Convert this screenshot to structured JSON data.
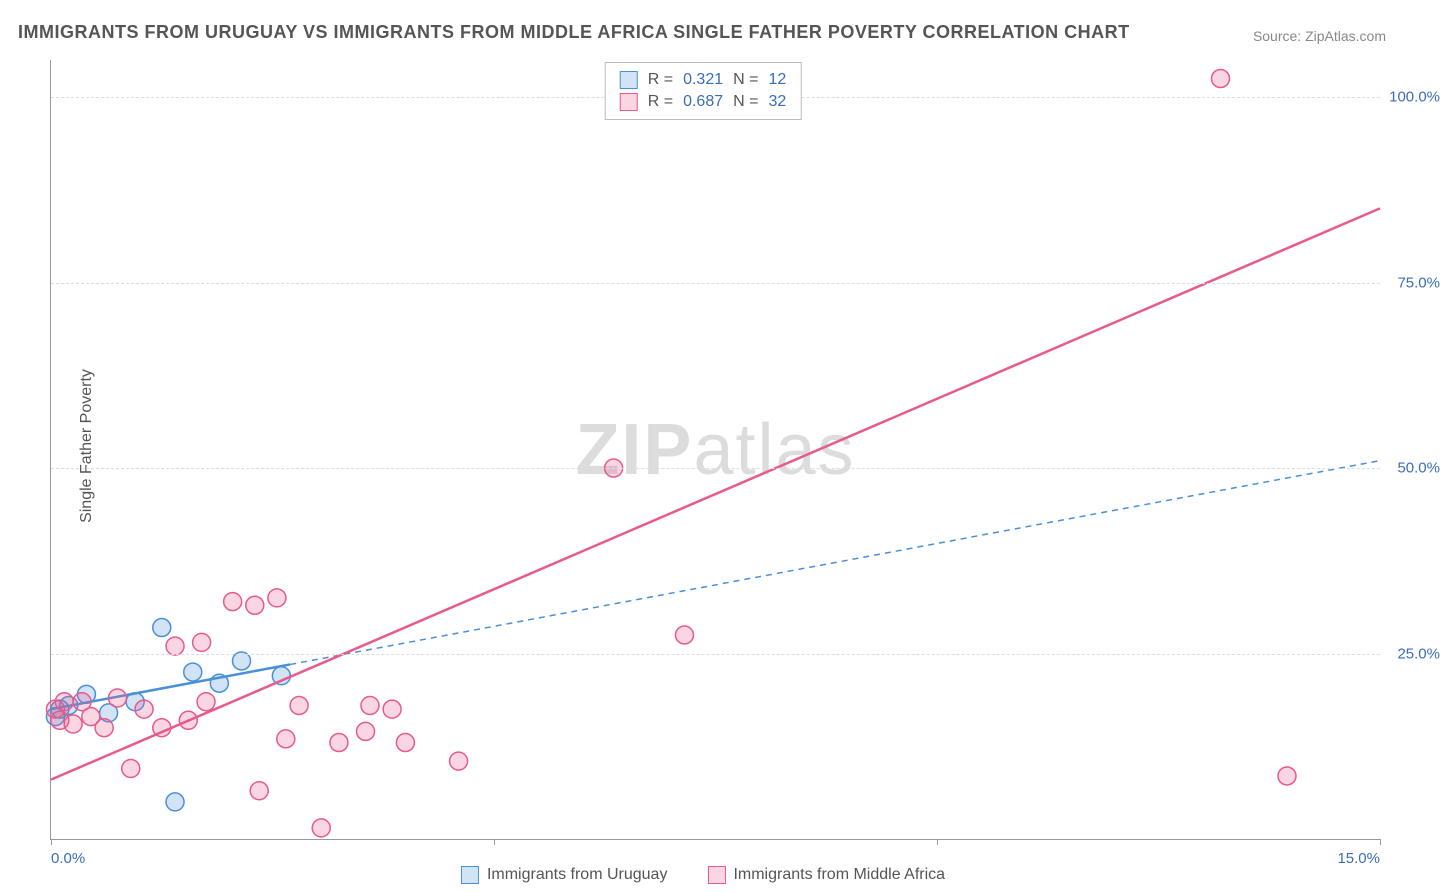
{
  "title": "IMMIGRANTS FROM URUGUAY VS IMMIGRANTS FROM MIDDLE AFRICA SINGLE FATHER POVERTY CORRELATION CHART",
  "source_label": "Source: ZipAtlas.com",
  "y_axis_label": "Single Father Poverty",
  "watermark": {
    "bold": "ZIP",
    "rest": "atlas"
  },
  "chart": {
    "type": "scatter",
    "background_color": "#ffffff",
    "grid_color": "#dddddd",
    "axis_color": "#999999",
    "tick_label_color": "#3b6db5",
    "tick_fontsize": 15,
    "title_fontsize": 18,
    "xlim": [
      0,
      15
    ],
    "ylim": [
      0,
      105
    ],
    "x_ticks": [
      0,
      5,
      10,
      15
    ],
    "x_tick_labels": [
      "0.0%",
      "",
      "",
      "15.0%"
    ],
    "y_ticks": [
      25,
      50,
      75,
      100
    ],
    "y_tick_labels": [
      "25.0%",
      "50.0%",
      "75.0%",
      "100.0%"
    ],
    "marker_radius": 9,
    "marker_stroke_width": 1.5,
    "marker_fill_opacity": 0.25,
    "line_width_solid": 2.5,
    "line_width_dashed": 1.5,
    "dash_pattern": "6,5"
  },
  "series": [
    {
      "key": "uruguay",
      "label": "Immigrants from Uruguay",
      "color_stroke": "#4a90d9",
      "color_fill": "#4a90d9",
      "R": "0.321",
      "N": "12",
      "points": [
        [
          0.05,
          16.5
        ],
        [
          0.1,
          17.5
        ],
        [
          0.2,
          18.0
        ],
        [
          0.4,
          19.5
        ],
        [
          0.65,
          17.0
        ],
        [
          0.95,
          18.5
        ],
        [
          1.25,
          28.5
        ],
        [
          1.6,
          22.5
        ],
        [
          1.9,
          21.0
        ],
        [
          2.15,
          24.0
        ],
        [
          2.6,
          22.0
        ],
        [
          1.4,
          5.0
        ]
      ],
      "trend": {
        "x1": 0,
        "y1": 17.5,
        "x2": 2.7,
        "y2": 24.0,
        "extend_x": 15,
        "extend_y": 51.0,
        "dashed_after_x": 2.7
      }
    },
    {
      "key": "middle_africa",
      "label": "Immigrants from Middle Africa",
      "color_stroke": "#e85a8a",
      "color_fill": "#e85a8a",
      "R": "0.687",
      "N": "32",
      "points": [
        [
          0.05,
          17.5
        ],
        [
          0.1,
          16.0
        ],
        [
          0.15,
          18.5
        ],
        [
          0.25,
          15.5
        ],
        [
          0.35,
          18.5
        ],
        [
          0.45,
          16.5
        ],
        [
          0.6,
          15.0
        ],
        [
          0.75,
          19.0
        ],
        [
          0.9,
          9.5
        ],
        [
          1.05,
          17.5
        ],
        [
          1.25,
          15.0
        ],
        [
          1.4,
          26.0
        ],
        [
          1.55,
          16.0
        ],
        [
          1.75,
          18.5
        ],
        [
          1.7,
          26.5
        ],
        [
          2.05,
          32.0
        ],
        [
          2.3,
          31.5
        ],
        [
          2.35,
          6.5
        ],
        [
          2.55,
          32.5
        ],
        [
          2.65,
          13.5
        ],
        [
          2.8,
          18.0
        ],
        [
          3.05,
          1.5
        ],
        [
          3.25,
          13.0
        ],
        [
          3.55,
          14.5
        ],
        [
          3.6,
          18.0
        ],
        [
          3.85,
          17.5
        ],
        [
          4.0,
          13.0
        ],
        [
          4.6,
          10.5
        ],
        [
          6.35,
          50.0
        ],
        [
          7.15,
          27.5
        ],
        [
          13.2,
          102.5
        ],
        [
          13.95,
          8.5
        ]
      ],
      "trend": {
        "x1": 0,
        "y1": 8.0,
        "extend_x": 15,
        "extend_y": 85.0,
        "dashed_after_x": 99
      }
    }
  ],
  "legend_top": {
    "R_label": "R  =",
    "N_label": "N  =",
    "border_color": "#bbbbbb"
  }
}
